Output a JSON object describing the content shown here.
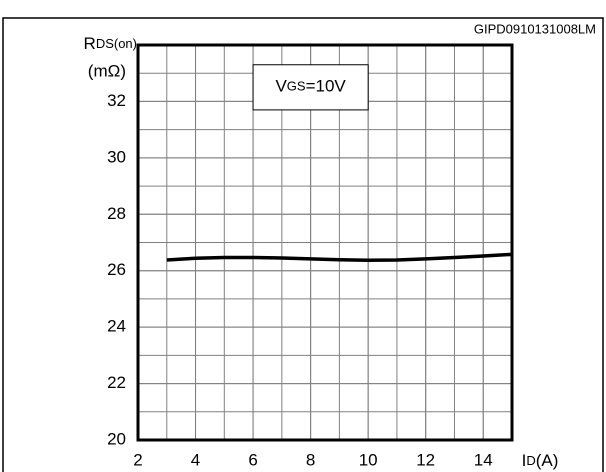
{
  "chart_data": {
    "type": "line",
    "code": "GIPD0910131008LM",
    "y_label": "R",
    "y_label_sub": "DS(on)",
    "y_unit": "(mΩ)",
    "x_label": "I",
    "x_label_sub": "D",
    "x_unit": "(A)",
    "annotation": "V",
    "annotation_sub": "GS",
    "annotation_rest": "=10V",
    "x": [
      3,
      4,
      5,
      6,
      7,
      8,
      9,
      10,
      11,
      12,
      13,
      14,
      15
    ],
    "series": [
      {
        "name": "VGS=10V",
        "color": "#000000",
        "values": [
          26.38,
          26.44,
          26.47,
          26.47,
          26.45,
          26.42,
          26.39,
          26.37,
          26.38,
          26.42,
          26.47,
          26.52,
          26.58
        ]
      }
    ],
    "xlim": [
      2,
      15
    ],
    "xticks": [
      2,
      4,
      6,
      8,
      10,
      12,
      14
    ],
    "ylim": [
      20,
      34
    ],
    "yticks": [
      20,
      22,
      24,
      26,
      28,
      30,
      32
    ],
    "grid": true
  }
}
